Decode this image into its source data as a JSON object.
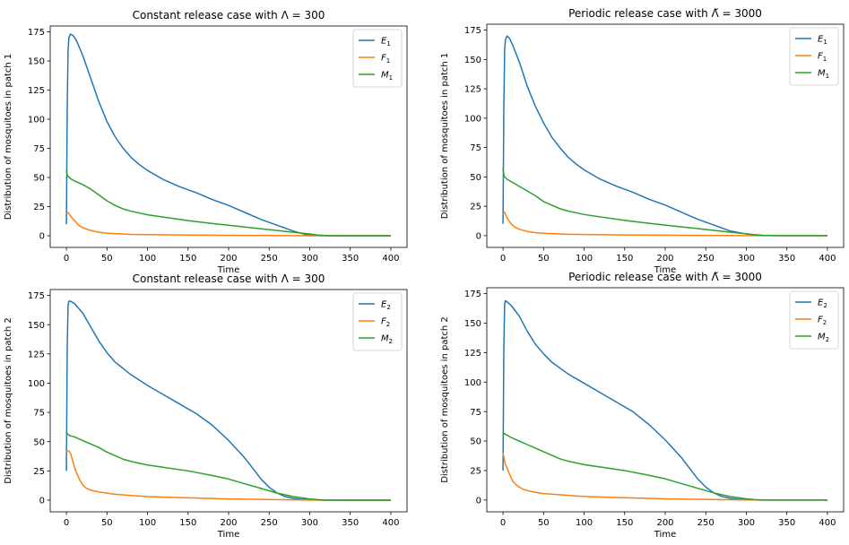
{
  "chart_data": [
    {
      "type": "line",
      "title": "Constant release case with Λ = 300",
      "xlabel": "Time",
      "ylabel": "Distribution of mosquitoes in patch 1",
      "xlim": [
        -20,
        420
      ],
      "ylim": [
        -10,
        180
      ],
      "xticks": [
        0,
        50,
        100,
        150,
        200,
        250,
        300,
        350,
        400
      ],
      "yticks": [
        0,
        25,
        50,
        75,
        100,
        125,
        150,
        175
      ],
      "legend_position": "top-right",
      "series": [
        {
          "name": "E",
          "sub": "1",
          "color": "#1f77b4",
          "x": [
            0,
            0.5,
            1,
            2,
            3,
            5,
            8,
            12,
            20,
            30,
            40,
            50,
            60,
            70,
            80,
            90,
            100,
            120,
            140,
            160,
            180,
            200,
            220,
            240,
            260,
            280,
            295,
            300,
            310,
            320,
            340,
            360,
            400
          ],
          "y": [
            10,
            60,
            110,
            158,
            170,
            173,
            172,
            168,
            155,
            135,
            115,
            98,
            85,
            75,
            67,
            61,
            56,
            48,
            42,
            37,
            31,
            26,
            20,
            14,
            9,
            4,
            1,
            0.5,
            0.2,
            0,
            0,
            0,
            0
          ]
        },
        {
          "name": "F",
          "sub": "1",
          "color": "#ff7f0e",
          "x": [
            0,
            2,
            5,
            10,
            15,
            20,
            30,
            40,
            50,
            60,
            80,
            100,
            150,
            200,
            250,
            300,
            350,
            400
          ],
          "y": [
            19,
            20,
            17,
            13,
            9,
            7,
            4.5,
            3,
            2.2,
            1.8,
            1.2,
            1,
            0.6,
            0.4,
            0.2,
            0.05,
            0,
            0
          ]
        },
        {
          "name": "M",
          "sub": "1",
          "color": "#2ca02c",
          "x": [
            0,
            0.5,
            1,
            2,
            5,
            10,
            20,
            30,
            40,
            50,
            60,
            70,
            80,
            100,
            120,
            150,
            180,
            200,
            220,
            240,
            260,
            280,
            300,
            310,
            320,
            340,
            400
          ],
          "y": [
            56,
            54,
            52,
            51,
            49,
            47,
            44,
            40,
            35,
            30,
            26,
            23,
            21,
            18,
            16,
            13,
            10.5,
            9,
            7.5,
            6,
            4.5,
            3,
            1.5,
            0.6,
            0.2,
            0,
            0
          ]
        }
      ]
    },
    {
      "type": "line",
      "title": "Periodic release case with Λ̃ = 3000",
      "xlabel": "Time",
      "ylabel": "Distribution of mosquitoes in patch 1",
      "xlim": [
        -20,
        420
      ],
      "ylim": [
        -10,
        180
      ],
      "xticks": [
        0,
        50,
        100,
        150,
        200,
        250,
        300,
        350,
        400
      ],
      "yticks": [
        0,
        25,
        50,
        75,
        100,
        125,
        150,
        175
      ],
      "legend_position": "top-right",
      "series": [
        {
          "name": "E",
          "sub": "1",
          "color": "#1f77b4",
          "x": [
            0,
            0.5,
            1,
            2,
            3,
            5,
            8,
            12,
            20,
            30,
            40,
            50,
            60,
            70,
            80,
            90,
            100,
            120,
            140,
            160,
            180,
            200,
            220,
            240,
            260,
            280,
            295,
            300,
            310,
            320,
            340,
            360,
            400
          ],
          "y": [
            10,
            60,
            110,
            158,
            167,
            170,
            168,
            162,
            148,
            127,
            110,
            96,
            84,
            75,
            67,
            61,
            56,
            48,
            42,
            37,
            31,
            26,
            20,
            14,
            9,
            4,
            2,
            1.5,
            0.8,
            0.3,
            0,
            0,
            0
          ]
        },
        {
          "name": "F",
          "sub": "1",
          "color": "#ff7f0e",
          "x": [
            0,
            2,
            5,
            10,
            15,
            20,
            30,
            40,
            50,
            60,
            80,
            100,
            150,
            200,
            250,
            300,
            350,
            400
          ],
          "y": [
            19,
            20,
            15,
            10,
            7,
            5.5,
            3.5,
            2.5,
            2,
            1.7,
            1.2,
            1,
            0.6,
            0.4,
            0.2,
            0.05,
            0,
            0
          ]
        },
        {
          "name": "M",
          "sub": "1",
          "color": "#2ca02c",
          "x": [
            0,
            0.5,
            1,
            2,
            5,
            10,
            20,
            30,
            40,
            50,
            60,
            70,
            80,
            100,
            120,
            150,
            180,
            200,
            220,
            240,
            260,
            280,
            300,
            310,
            320,
            340,
            400
          ],
          "y": [
            58,
            54,
            52,
            50,
            48,
            46,
            42,
            38,
            34,
            29,
            26,
            23,
            21,
            18,
            16,
            13,
            10.5,
            9,
            7.5,
            6,
            4.5,
            3,
            1.5,
            0.7,
            0.2,
            0,
            0
          ]
        }
      ]
    },
    {
      "type": "line",
      "title": "Constant release case with Λ = 300",
      "xlabel": "Time",
      "ylabel": "Distribution of mosquitoes in patch 2",
      "xlim": [
        -20,
        420
      ],
      "ylim": [
        -10,
        180
      ],
      "xticks": [
        0,
        50,
        100,
        150,
        200,
        250,
        300,
        350,
        400
      ],
      "yticks": [
        0,
        25,
        50,
        75,
        100,
        125,
        150,
        175
      ],
      "legend_position": "top-right",
      "series": [
        {
          "name": "E",
          "sub": "2",
          "color": "#1f77b4",
          "x": [
            0,
            0.5,
            1,
            2,
            3,
            5,
            10,
            20,
            30,
            40,
            50,
            60,
            80,
            100,
            120,
            140,
            160,
            180,
            200,
            220,
            240,
            250,
            260,
            270,
            280,
            290,
            300,
            310,
            320,
            340,
            360,
            400
          ],
          "y": [
            25,
            80,
            130,
            166,
            170,
            170,
            168,
            160,
            148,
            136,
            126,
            118,
            107,
            98,
            90,
            82,
            74,
            64,
            51,
            36,
            18,
            11,
            6,
            3,
            1.5,
            0.7,
            0.3,
            0.1,
            0,
            0,
            0,
            0
          ]
        },
        {
          "name": "F",
          "sub": "2",
          "color": "#ff7f0e",
          "x": [
            0,
            1,
            3,
            5,
            8,
            12,
            16,
            20,
            25,
            30,
            40,
            50,
            60,
            80,
            100,
            150,
            200,
            250,
            300,
            350,
            400
          ],
          "y": [
            41,
            42,
            42,
            40,
            33,
            24,
            18,
            13,
            10,
            8.5,
            7,
            6,
            5,
            4,
            3,
            2,
            1,
            0.5,
            0.1,
            0,
            0
          ]
        },
        {
          "name": "M",
          "sub": "2",
          "color": "#2ca02c",
          "x": [
            0,
            0.5,
            1,
            2,
            5,
            10,
            20,
            30,
            40,
            50,
            60,
            70,
            80,
            100,
            120,
            150,
            180,
            200,
            220,
            240,
            260,
            280,
            300,
            310,
            320,
            340,
            400
          ],
          "y": [
            59,
            57,
            57,
            56,
            55,
            54,
            51,
            48,
            45,
            41,
            38,
            35,
            33,
            30,
            28,
            25,
            21,
            18,
            14,
            10,
            6,
            3,
            1,
            0.4,
            0.1,
            0,
            0
          ]
        }
      ]
    },
    {
      "type": "line",
      "title": "Periodic release case with Λ̃ = 3000",
      "xlabel": "Time",
      "ylabel": "Distribution of mosquitoes in patch 2",
      "xlim": [
        -20,
        420
      ],
      "ylim": [
        -10,
        180
      ],
      "xticks": [
        0,
        50,
        100,
        150,
        200,
        250,
        300,
        350,
        400
      ],
      "yticks": [
        0,
        25,
        50,
        75,
        100,
        125,
        150,
        175
      ],
      "legend_position": "top-right",
      "series": [
        {
          "name": "E",
          "sub": "2",
          "color": "#1f77b4",
          "x": [
            0,
            0.5,
            1,
            2,
            3,
            5,
            10,
            20,
            30,
            40,
            50,
            60,
            80,
            100,
            120,
            140,
            160,
            180,
            200,
            220,
            240,
            250,
            260,
            270,
            280,
            290,
            300,
            310,
            320,
            340,
            360,
            400
          ],
          "y": [
            25,
            80,
            130,
            166,
            169,
            168,
            165,
            156,
            143,
            132,
            124,
            117,
            107,
            99,
            91,
            83,
            75,
            64,
            51,
            36,
            18,
            11,
            6,
            3,
            1.5,
            0.7,
            0.3,
            0.1,
            0,
            0,
            0,
            0
          ]
        },
        {
          "name": "F",
          "sub": "2",
          "color": "#ff7f0e",
          "x": [
            0,
            1,
            3,
            5,
            8,
            12,
            16,
            20,
            25,
            30,
            40,
            50,
            60,
            80,
            100,
            150,
            200,
            250,
            300,
            350,
            400
          ],
          "y": [
            40,
            36,
            30,
            27,
            22,
            16,
            13,
            11,
            9,
            8,
            6.5,
            5.5,
            5,
            4,
            3,
            2,
            1,
            0.5,
            0.1,
            0,
            0
          ]
        },
        {
          "name": "M",
          "sub": "2",
          "color": "#2ca02c",
          "x": [
            0,
            0.5,
            1,
            2,
            5,
            10,
            20,
            30,
            40,
            50,
            60,
            70,
            80,
            100,
            120,
            150,
            180,
            200,
            220,
            240,
            260,
            280,
            300,
            310,
            320,
            340,
            400
          ],
          "y": [
            58,
            57,
            57,
            56,
            55,
            53,
            50,
            47,
            44,
            41,
            38,
            35,
            33,
            30,
            28,
            25,
            21,
            18,
            14,
            10,
            6,
            3,
            1,
            0.4,
            0.1,
            0,
            0
          ]
        }
      ]
    }
  ]
}
